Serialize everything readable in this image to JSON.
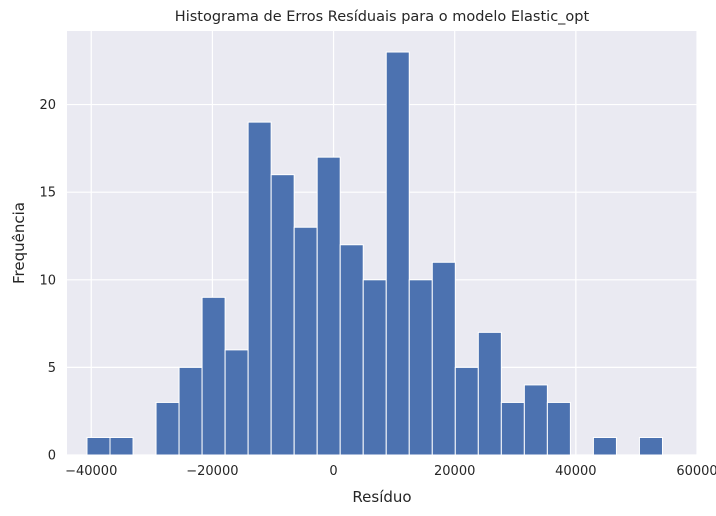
{
  "chart_data": {
    "type": "histogram",
    "title": "Histograma de Erros Resíduais para o modelo Elastic_opt",
    "xlabel": "Resíduo",
    "ylabel": "Frequência",
    "xlim": [
      -44000,
      60000
    ],
    "ylim": [
      0,
      24.2
    ],
    "xticks": [
      -40000,
      -20000,
      0,
      20000,
      40000,
      60000
    ],
    "xtick_labels": [
      "−40000",
      "−20000",
      "0",
      "20000",
      "40000",
      "60000"
    ],
    "yticks": [
      0,
      5,
      10,
      15,
      20
    ],
    "ytick_labels": [
      "0",
      "5",
      "10",
      "15",
      "20"
    ],
    "bin_start": -40700,
    "bin_width": 3800,
    "bins": [
      {
        "x0": -40700,
        "x1": -36900,
        "count": 1
      },
      {
        "x0": -36900,
        "x1": -33100,
        "count": 1
      },
      {
        "x0": -33100,
        "x1": -29300,
        "count": 0
      },
      {
        "x0": -29300,
        "x1": -25500,
        "count": 3
      },
      {
        "x0": -25500,
        "x1": -21700,
        "count": 5
      },
      {
        "x0": -21700,
        "x1": -17900,
        "count": 9
      },
      {
        "x0": -17900,
        "x1": -14100,
        "count": 6
      },
      {
        "x0": -14100,
        "x1": -10300,
        "count": 19
      },
      {
        "x0": -10300,
        "x1": -6500,
        "count": 16
      },
      {
        "x0": -6500,
        "x1": -2700,
        "count": 13
      },
      {
        "x0": -2700,
        "x1": 1100,
        "count": 17
      },
      {
        "x0": 1100,
        "x1": 4900,
        "count": 12
      },
      {
        "x0": 4900,
        "x1": 8700,
        "count": 10
      },
      {
        "x0": 8700,
        "x1": 12500,
        "count": 23
      },
      {
        "x0": 12500,
        "x1": 16300,
        "count": 10
      },
      {
        "x0": 16300,
        "x1": 20100,
        "count": 11
      },
      {
        "x0": 20100,
        "x1": 23900,
        "count": 5
      },
      {
        "x0": 23900,
        "x1": 27700,
        "count": 7
      },
      {
        "x0": 27700,
        "x1": 31500,
        "count": 3
      },
      {
        "x0": 31500,
        "x1": 35300,
        "count": 4
      },
      {
        "x0": 35300,
        "x1": 39100,
        "count": 3
      },
      {
        "x0": 39100,
        "x1": 42900,
        "count": 0
      },
      {
        "x0": 42900,
        "x1": 46700,
        "count": 1
      },
      {
        "x0": 46700,
        "x1": 50500,
        "count": 0
      },
      {
        "x0": 50500,
        "x1": 54300,
        "count": 1
      }
    ],
    "grid": true,
    "colors": {
      "bar": "#4c72b0",
      "bar_edge": "#ffffff",
      "plot_background": "#eaeaf2",
      "grid": "#ffffff",
      "text": "#262626"
    }
  }
}
